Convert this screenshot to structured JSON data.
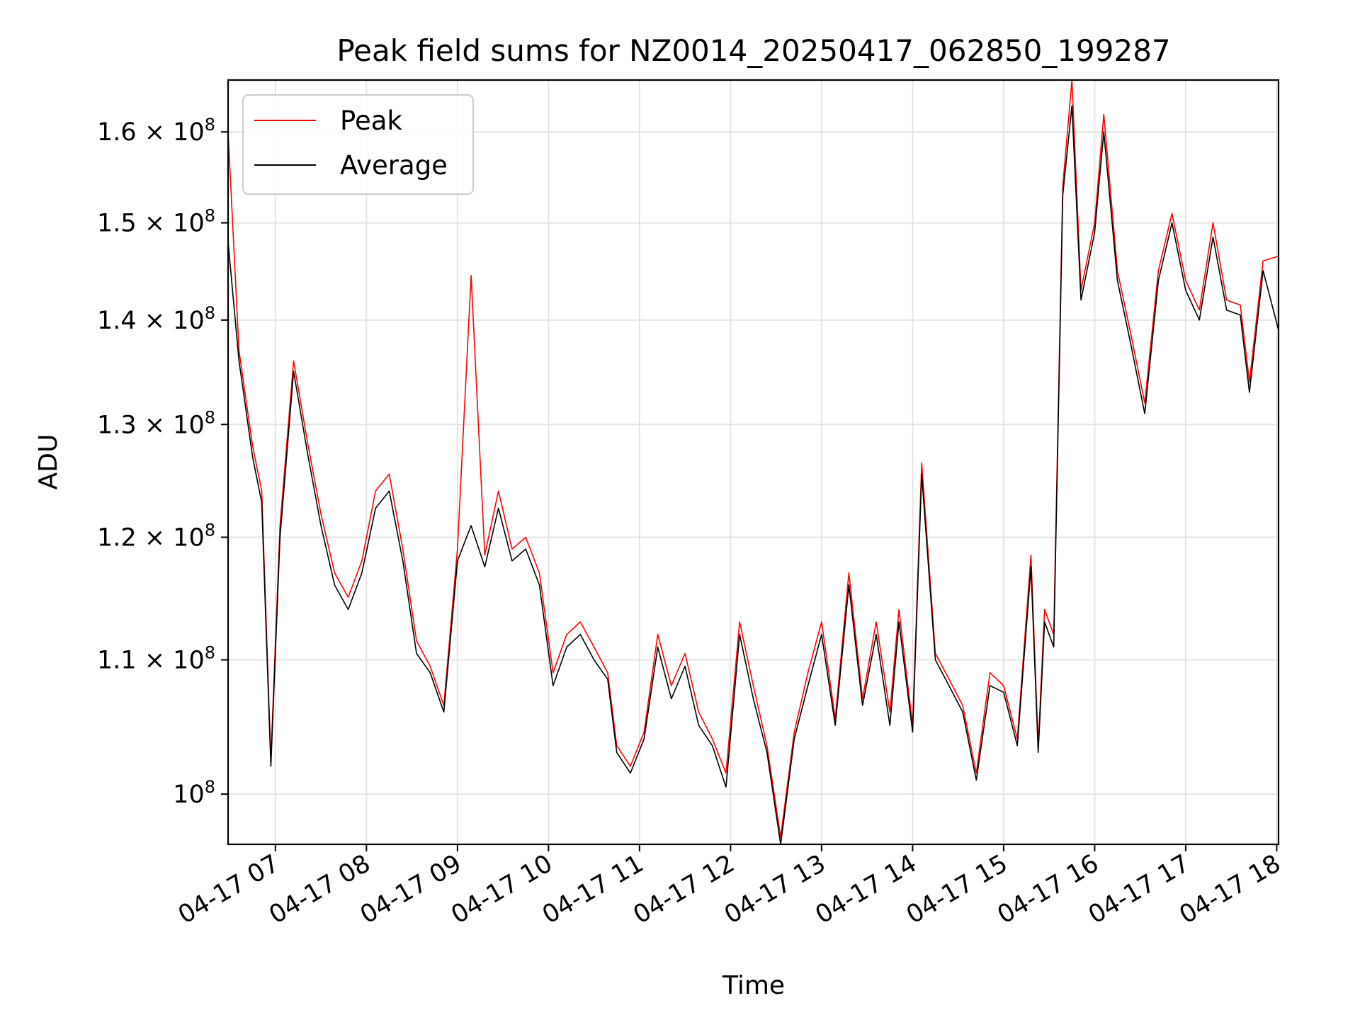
{
  "chart_data": {
    "type": "line",
    "title": "Peak field sums for NZ0014_20250417_062850_199287",
    "xlabel": "Time",
    "ylabel": "ADU",
    "yscale": "log",
    "xlim_hours": [
      6.48,
      18.02
    ],
    "ylim": [
      96500000,
      166000000
    ],
    "grid": true,
    "legend_position": "upper left",
    "x_ticks": [
      "04-17 07",
      "04-17 08",
      "04-17 09",
      "04-17 10",
      "04-17 11",
      "04-17 12",
      "04-17 13",
      "04-17 14",
      "04-17 15",
      "04-17 16",
      "04-17 17",
      "04-17 18"
    ],
    "y_ticks": [
      {
        "value": 100000000,
        "label": "10^8"
      },
      {
        "value": 110000000,
        "label": "1.1 × 10^8"
      },
      {
        "value": 120000000,
        "label": "1.2 × 10^8"
      },
      {
        "value": 130000000,
        "label": "1.3 × 10^8"
      },
      {
        "value": 140000000,
        "label": "1.4 × 10^8"
      },
      {
        "value": 150000000,
        "label": "1.5 × 10^8"
      },
      {
        "value": 160000000,
        "label": "1.6 × 10^8"
      }
    ],
    "x_hours": [
      6.48,
      6.6,
      6.75,
      6.85,
      6.95,
      7.05,
      7.2,
      7.35,
      7.5,
      7.65,
      7.8,
      7.95,
      8.1,
      8.25,
      8.4,
      8.55,
      8.7,
      8.85,
      9.0,
      9.15,
      9.3,
      9.45,
      9.6,
      9.75,
      9.9,
      10.05,
      10.2,
      10.35,
      10.5,
      10.65,
      10.75,
      10.9,
      11.05,
      11.2,
      11.35,
      11.5,
      11.65,
      11.8,
      11.95,
      12.1,
      12.25,
      12.4,
      12.55,
      12.7,
      12.85,
      13.0,
      13.15,
      13.3,
      13.45,
      13.6,
      13.75,
      13.85,
      14.0,
      14.1,
      14.25,
      14.4,
      14.55,
      14.7,
      14.85,
      15.0,
      15.15,
      15.3,
      15.38,
      15.45,
      15.55,
      15.65,
      15.75,
      15.85,
      16.0,
      16.1,
      16.25,
      16.4,
      16.55,
      16.7,
      16.85,
      17.0,
      17.15,
      17.3,
      17.45,
      17.6,
      17.7,
      17.85,
      18.02
    ],
    "series": [
      {
        "name": "Peak",
        "color": "#ff0000",
        "values": [
          160000000,
          137000000,
          128000000,
          124000000,
          102500000,
          121000000,
          136000000,
          128500000,
          122000000,
          117000000,
          115000000,
          118000000,
          124000000,
          125500000,
          119000000,
          111500000,
          109500000,
          106500000,
          119000000,
          144500000,
          118500000,
          124000000,
          119000000,
          120000000,
          117000000,
          109000000,
          112000000,
          113000000,
          111000000,
          109000000,
          103500000,
          102000000,
          104500000,
          112000000,
          108000000,
          110500000,
          106000000,
          104000000,
          101500000,
          113000000,
          108000000,
          103500000,
          97000000,
          104500000,
          109000000,
          113000000,
          105500000,
          117000000,
          107000000,
          113000000,
          106000000,
          114000000,
          105000000,
          126500000,
          110500000,
          108500000,
          106500000,
          101500000,
          109000000,
          108000000,
          104000000,
          118500000,
          103500000,
          114000000,
          112000000,
          154000000,
          166000000,
          143000000,
          150000000,
          162000000,
          145000000,
          138500000,
          132000000,
          145000000,
          151000000,
          144000000,
          141000000,
          150000000,
          142000000,
          141500000,
          134000000,
          146000000,
          146500000
        ]
      },
      {
        "name": "Average",
        "color": "#000000",
        "values": [
          148000000,
          136000000,
          127000000,
          123000000,
          102000000,
          120000000,
          135000000,
          127500000,
          121000000,
          116000000,
          114000000,
          117000000,
          122500000,
          124000000,
          118000000,
          110500000,
          109000000,
          106000000,
          118000000,
          121000000,
          117500000,
          122500000,
          118000000,
          119000000,
          116000000,
          108000000,
          111000000,
          112000000,
          110000000,
          108500000,
          103000000,
          101500000,
          104000000,
          111000000,
          107000000,
          109500000,
          105000000,
          103500000,
          100500000,
          112000000,
          107000000,
          103000000,
          96500000,
          104000000,
          108000000,
          112000000,
          105000000,
          116000000,
          106500000,
          112000000,
          105000000,
          113000000,
          104500000,
          125500000,
          110000000,
          108000000,
          106000000,
          101000000,
          108000000,
          107500000,
          103500000,
          117500000,
          103000000,
          113000000,
          111000000,
          153000000,
          163000000,
          142000000,
          149000000,
          160000000,
          144000000,
          137500000,
          131000000,
          144000000,
          150000000,
          143000000,
          140000000,
          148500000,
          141000000,
          140500000,
          133000000,
          145000000,
          139000000
        ]
      }
    ]
  }
}
